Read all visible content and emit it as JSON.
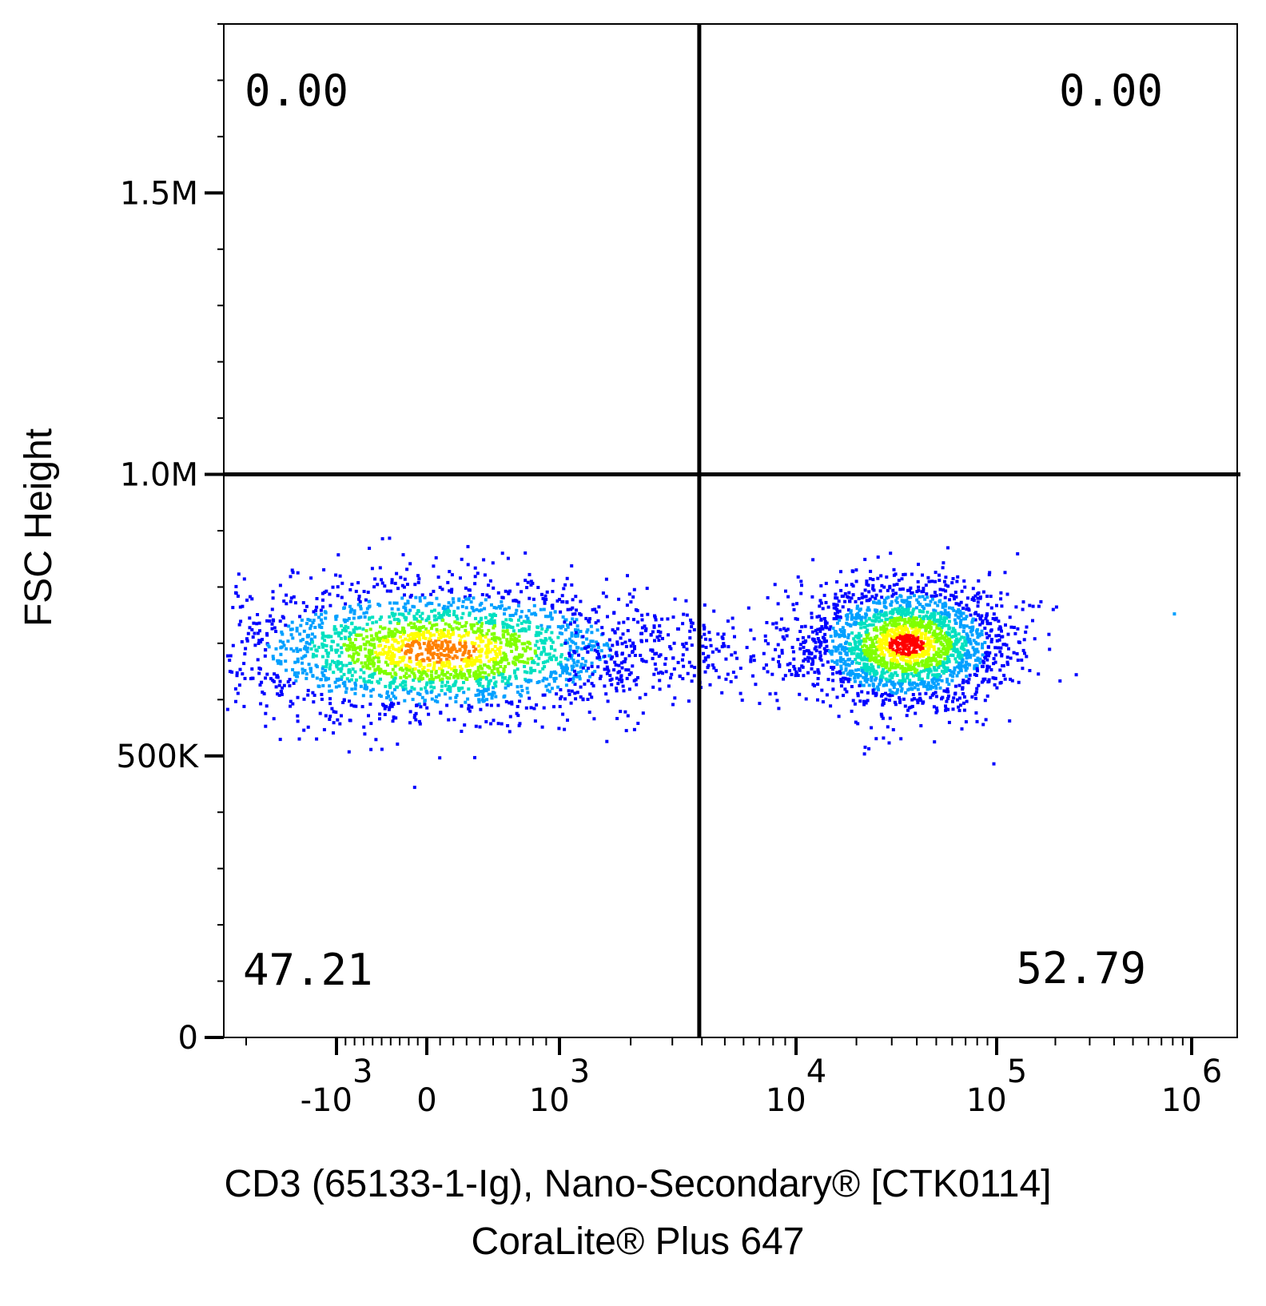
{
  "chart_data": {
    "type": "scatter",
    "subtype": "flow-cytometry-density-plot",
    "xlabel_line1": "CD3 (65133-1-Ig), Nano-Secondary® [CTK0114]",
    "xlabel_line2": "CoraLite® Plus 647",
    "ylabel": "FSC Height",
    "x_scale": "biexponential",
    "y_scale": "linear",
    "ylim": [
      0,
      1800000
    ],
    "y_ticks": [
      {
        "value": 0,
        "label": "0"
      },
      {
        "value": 500000,
        "label": "500K"
      },
      {
        "value": 1000000,
        "label": "1.0M"
      },
      {
        "value": 1500000,
        "label": "1.5M"
      }
    ],
    "x_ticks": [
      {
        "value": -1000,
        "base": "-10",
        "exp": "3"
      },
      {
        "value": 0,
        "base": "0",
        "exp": ""
      },
      {
        "value": 1000,
        "base": "10",
        "exp": "3"
      },
      {
        "value": 10000,
        "base": "10",
        "exp": "4"
      },
      {
        "value": 100000,
        "base": "10",
        "exp": "5"
      },
      {
        "value": 1000000,
        "base": "10",
        "exp": "6"
      }
    ],
    "quadrant_gate": {
      "x": 5000,
      "y": 1000000
    },
    "quadrants": [
      {
        "position": "upper-left",
        "value": "0.00"
      },
      {
        "position": "upper-right",
        "value": "0.00"
      },
      {
        "position": "lower-left",
        "value": "47.21"
      },
      {
        "position": "lower-right",
        "value": "52.79"
      }
    ],
    "populations": [
      {
        "quadrant": "lower-left",
        "x_center": 80,
        "y_center": 690000,
        "y_spread": 60000,
        "peak_color": "#ff8000"
      },
      {
        "quadrant": "lower-right",
        "x_center": 35000,
        "y_center": 700000,
        "y_spread": 55000,
        "peak_color": "#ff1a00"
      }
    ],
    "density_colors": [
      "#0000ff",
      "#00a0ff",
      "#00e0c0",
      "#80ff00",
      "#ffff00",
      "#ff8000",
      "#ff0000"
    ],
    "grid": false,
    "legend": "none"
  }
}
